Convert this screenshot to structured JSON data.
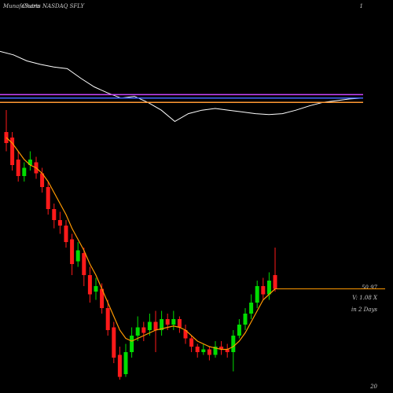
{
  "chart_data": {
    "type": "candlestick",
    "title": "Charts NASDAQ SFLY",
    "brand": "MunafaSutra",
    "corner_label": "1",
    "price_label": "50.97",
    "volume_label": "V: 1.08 X",
    "days_label": "in 2 Days",
    "bottom_label": "20",
    "ylim": [
      0,
      100
    ],
    "up_color": "#00dd00",
    "down_color": "#ff1a1a",
    "open": [
      92,
      90,
      82,
      76,
      80,
      81,
      77,
      72,
      64,
      60,
      58,
      53,
      45,
      48,
      40,
      34,
      35,
      28,
      21,
      11,
      4,
      12,
      18,
      21,
      20,
      23,
      20,
      24,
      22,
      24,
      20,
      17,
      14,
      12,
      13,
      11,
      14,
      13,
      12,
      18,
      22,
      26,
      30,
      36,
      33,
      40
    ],
    "high": [
      100,
      92,
      85,
      81,
      85,
      83,
      79,
      74,
      66,
      63,
      60,
      55,
      52,
      50,
      43,
      39,
      37,
      31,
      23,
      14,
      15,
      21,
      25,
      23,
      26,
      27,
      27,
      26,
      27,
      25,
      22,
      18,
      15,
      15,
      14,
      16,
      16,
      15,
      20,
      24,
      28,
      33,
      38,
      39,
      41,
      50
    ],
    "low": [
      85,
      78,
      74,
      74,
      78,
      75,
      70,
      62,
      57,
      55,
      50,
      40,
      43,
      36,
      30,
      31,
      26,
      18,
      8,
      2,
      3,
      10,
      16,
      16,
      18,
      12,
      18,
      20,
      20,
      19,
      15,
      12,
      10,
      11,
      9,
      10,
      11,
      10,
      5,
      17,
      20,
      24,
      28,
      31,
      31,
      34
    ],
    "close": [
      88,
      80,
      76,
      79,
      82,
      77,
      72,
      64,
      60,
      58,
      52,
      44,
      49,
      40,
      33,
      36,
      28,
      20,
      10,
      3,
      12,
      18,
      21,
      19,
      23,
      20,
      24,
      22,
      24,
      21,
      17,
      14,
      12,
      13,
      11,
      14,
      13,
      12,
      18,
      22,
      26,
      30,
      36,
      33,
      38,
      35
    ],
    "ma": {
      "color": "#ff9900",
      "values": [
        90,
        88,
        85,
        82,
        80,
        79,
        77,
        74,
        70,
        66,
        62,
        57,
        53,
        49,
        44,
        40,
        35,
        30,
        25,
        20,
        17,
        16,
        17,
        18,
        19,
        20,
        20.5,
        21,
        21.5,
        21,
        20,
        18,
        16,
        15,
        14,
        13.5,
        13,
        13,
        14,
        16,
        19,
        23,
        27,
        31,
        33,
        35
      ]
    },
    "indicator": {
      "ylim": [
        0,
        100
      ],
      "series": [
        {
          "color": "#ffffff",
          "values": [
            86,
            82,
            75,
            71,
            68,
            66,
            55,
            45,
            38,
            32,
            34,
            27,
            18,
            5,
            14,
            18,
            20,
            18,
            16,
            14,
            13,
            14,
            18,
            23,
            27,
            29,
            31,
            32
          ]
        },
        {
          "color": "#cc44ff",
          "values": [
            36,
            36
          ]
        },
        {
          "color": "#4466ff",
          "values": [
            32,
            32
          ]
        },
        {
          "color": "#ff9933",
          "values": [
            27,
            27
          ]
        }
      ]
    }
  }
}
